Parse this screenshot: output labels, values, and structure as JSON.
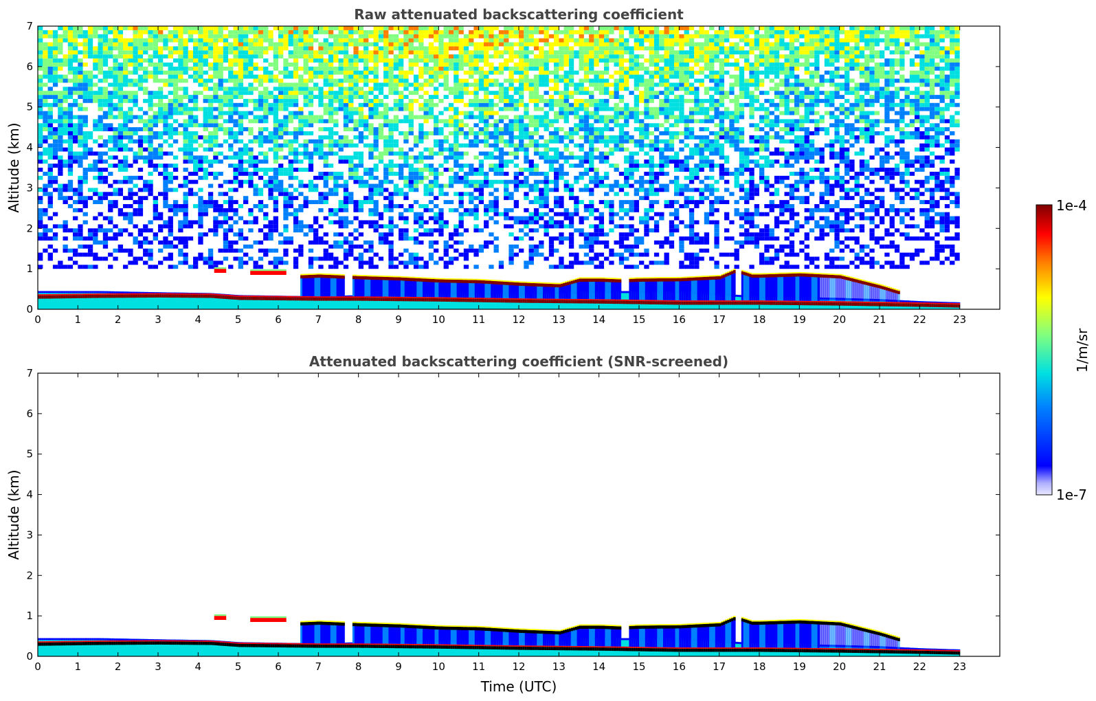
{
  "chart_data": [
    {
      "type": "heatmap",
      "title": "Raw attenuated backscattering coefficient",
      "xlabel": "",
      "ylabel": "Altitude (km)",
      "xlim": [
        0,
        24
      ],
      "ylim": [
        0,
        7
      ],
      "xticks": [
        0,
        1,
        2,
        3,
        4,
        5,
        6,
        7,
        8,
        9,
        10,
        11,
        12,
        13,
        14,
        15,
        16,
        17,
        18,
        19,
        20,
        21,
        22,
        23
      ],
      "yticks": [
        0,
        1,
        2,
        3,
        4,
        5,
        6,
        7
      ],
      "data_end_time": 23,
      "noise_screened": false,
      "layers": {
        "surface_top_km": [
          [
            0,
            0.45
          ],
          [
            1.5,
            0.45
          ],
          [
            3,
            0.42
          ],
          [
            4.3,
            0.4
          ],
          [
            5,
            0.35
          ],
          [
            7,
            0.32
          ],
          [
            8,
            0.35
          ],
          [
            10,
            0.4
          ],
          [
            12,
            0.4
          ],
          [
            14,
            0.45
          ],
          [
            16,
            0.45
          ],
          [
            18,
            0.32
          ],
          [
            20,
            0.28
          ],
          [
            21,
            0.25
          ],
          [
            22,
            0.2
          ],
          [
            23,
            0.17
          ]
        ],
        "strong_band_km": [
          [
            0,
            0.3
          ],
          [
            1.5,
            0.32
          ],
          [
            3,
            0.33
          ],
          [
            4.3,
            0.32
          ],
          [
            5,
            0.27
          ],
          [
            7,
            0.25
          ],
          [
            8,
            0.25
          ],
          [
            10,
            0.23
          ],
          [
            12,
            0.2
          ],
          [
            14,
            0.18
          ],
          [
            16,
            0.15
          ],
          [
            18,
            0.15
          ],
          [
            20,
            0.13
          ],
          [
            22,
            0.1
          ],
          [
            23,
            0.08
          ]
        ],
        "residual_layer_km": [
          [
            6.5,
            0.8
          ],
          [
            7,
            0.82
          ],
          [
            7.5,
            0.8
          ],
          [
            8,
            0.78
          ],
          [
            9,
            0.75
          ],
          [
            10,
            0.7
          ],
          [
            11,
            0.68
          ],
          [
            11.5,
            0.65
          ],
          [
            12,
            0.62
          ],
          [
            12.5,
            0.6
          ],
          [
            13,
            0.58
          ],
          [
            13.5,
            0.72
          ],
          [
            14,
            0.72
          ],
          [
            14.5,
            0.7
          ],
          [
            15,
            0.72
          ],
          [
            16,
            0.73
          ],
          [
            17,
            0.78
          ],
          [
            17.4,
            0.95
          ],
          [
            17.8,
            0.82
          ],
          [
            18,
            0.82
          ],
          [
            19,
            0.85
          ],
          [
            20,
            0.8
          ],
          [
            21,
            0.55
          ],
          [
            21.5,
            0.4
          ]
        ],
        "cloud_patches": [
          [
            4.4,
            4.7,
            0.95
          ],
          [
            5.3,
            6.2,
            0.9
          ]
        ],
        "dry_gaps": [
          [
            4.9,
            5.2
          ],
          [
            7.6,
            7.8
          ],
          [
            14.55,
            14.75
          ],
          [
            17.4,
            17.55
          ]
        ]
      },
      "colorbar": {
        "min": "1e-7",
        "max": "1e-4",
        "label": "1/m/sr",
        "colormap": "jet"
      }
    },
    {
      "type": "heatmap",
      "title": "Attenuated backscattering coefficient (SNR-screened)",
      "xlabel": "Time (UTC)",
      "ylabel": "Altitude (km)",
      "xlim": [
        0,
        24
      ],
      "ylim": [
        0,
        7
      ],
      "xticks": [
        0,
        1,
        2,
        3,
        4,
        5,
        6,
        7,
        8,
        9,
        10,
        11,
        12,
        13,
        14,
        15,
        16,
        17,
        18,
        19,
        20,
        21,
        22,
        23
      ],
      "yticks": [
        0,
        1,
        2,
        3,
        4,
        5,
        6,
        7
      ],
      "data_end_time": 23,
      "noise_screened": true,
      "colorbar": {
        "min": "1e-7",
        "max": "1e-4",
        "label": "1/m/sr",
        "colormap": "jet"
      }
    }
  ],
  "colors": {
    "jet": [
      "#e8e8ff",
      "#0000ff",
      "#0080ff",
      "#00e0e0",
      "#80ff80",
      "#ffff00",
      "#ff8000",
      "#ff0000",
      "#800000"
    ],
    "title": "#444444"
  }
}
